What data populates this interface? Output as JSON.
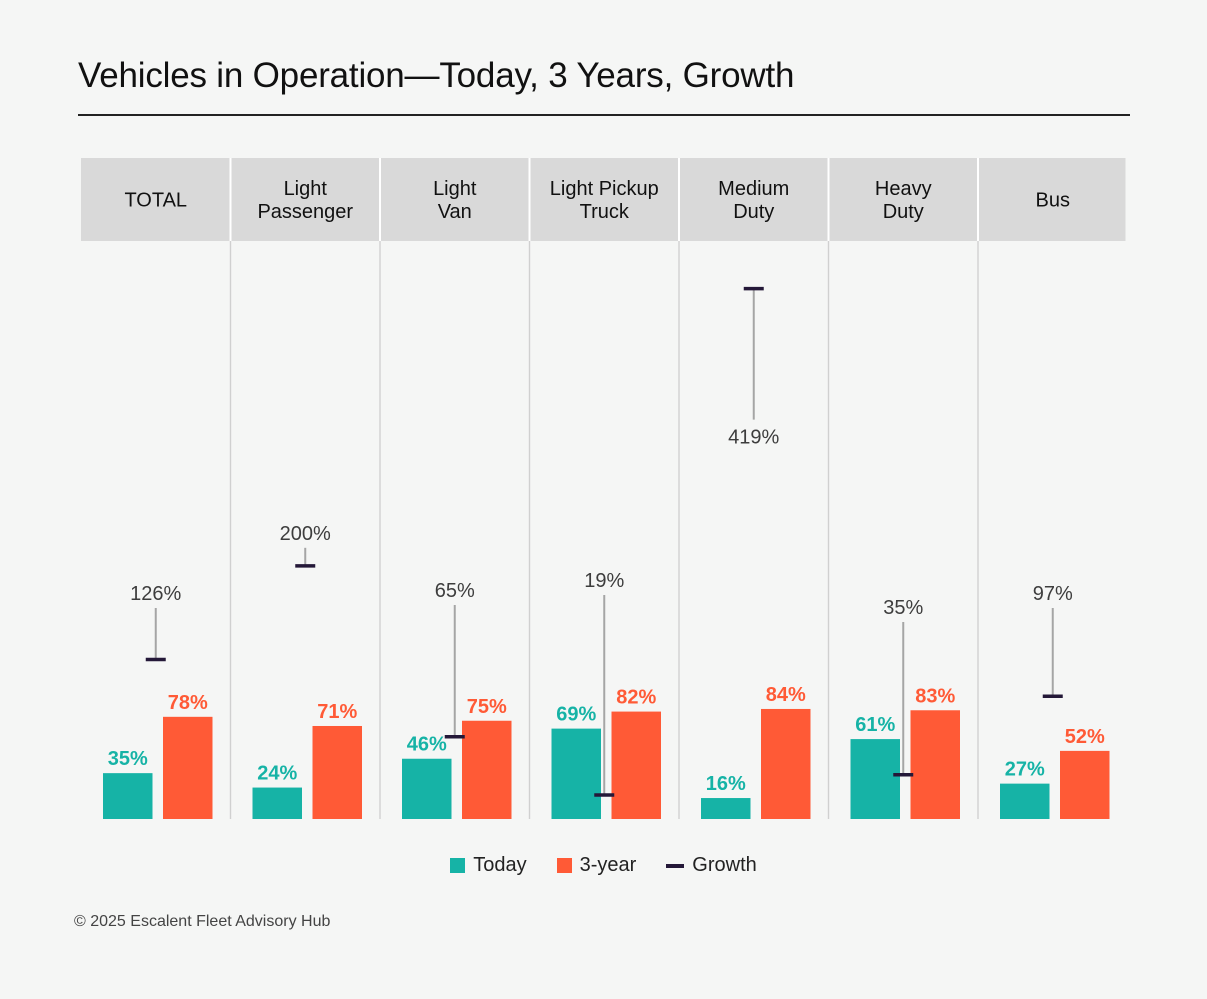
{
  "header": {
    "title": "Vehicles in Operation—Today, 3 Years, Growth"
  },
  "chart_data": {
    "type": "bar",
    "title": "Vehicles in Operation—Today, 3 Years, Growth",
    "categories": [
      [
        "TOTAL"
      ],
      [
        "Light",
        "Passenger"
      ],
      [
        "Light",
        "Van"
      ],
      [
        "Light Pickup",
        "Truck"
      ],
      [
        "Medium",
        "Duty"
      ],
      [
        "Heavy",
        "Duty"
      ],
      [
        "Bus"
      ]
    ],
    "series": [
      {
        "name": "Today",
        "kind": "bar",
        "color": "#16b3a6",
        "values": [
          35,
          24,
          46,
          69,
          16,
          61,
          27
        ],
        "labels": [
          "35%",
          "24%",
          "46%",
          "69%",
          "16%",
          "61%",
          "27%"
        ]
      },
      {
        "name": "3-year",
        "kind": "bar",
        "color": "#ff5a36",
        "values": [
          78,
          71,
          75,
          82,
          84,
          83,
          52
        ],
        "labels": [
          "78%",
          "71%",
          "75%",
          "82%",
          "84%",
          "83%",
          "52%"
        ]
      },
      {
        "name": "Growth",
        "kind": "marker",
        "color": "#241838",
        "values": [
          126,
          200,
          65,
          19,
          419,
          35,
          97
        ],
        "labels": [
          "126%",
          "200%",
          "65%",
          "19%",
          "419%",
          "35%",
          "97%"
        ]
      }
    ],
    "ylim_bars": [
      0,
      100
    ],
    "ylim_growth": [
      0,
      440
    ],
    "legend": [
      "Today",
      "3-year",
      "Growth"
    ],
    "legend_position": "bottom-center",
    "colors": {
      "header_bg": "#d9d9d9",
      "leader": "#a5a5a5",
      "divider": "#d0d0d0",
      "growth_label": "#3d3d3d"
    }
  },
  "footer": {
    "copyright": "© 2025 Escalent Fleet Advisory Hub"
  }
}
